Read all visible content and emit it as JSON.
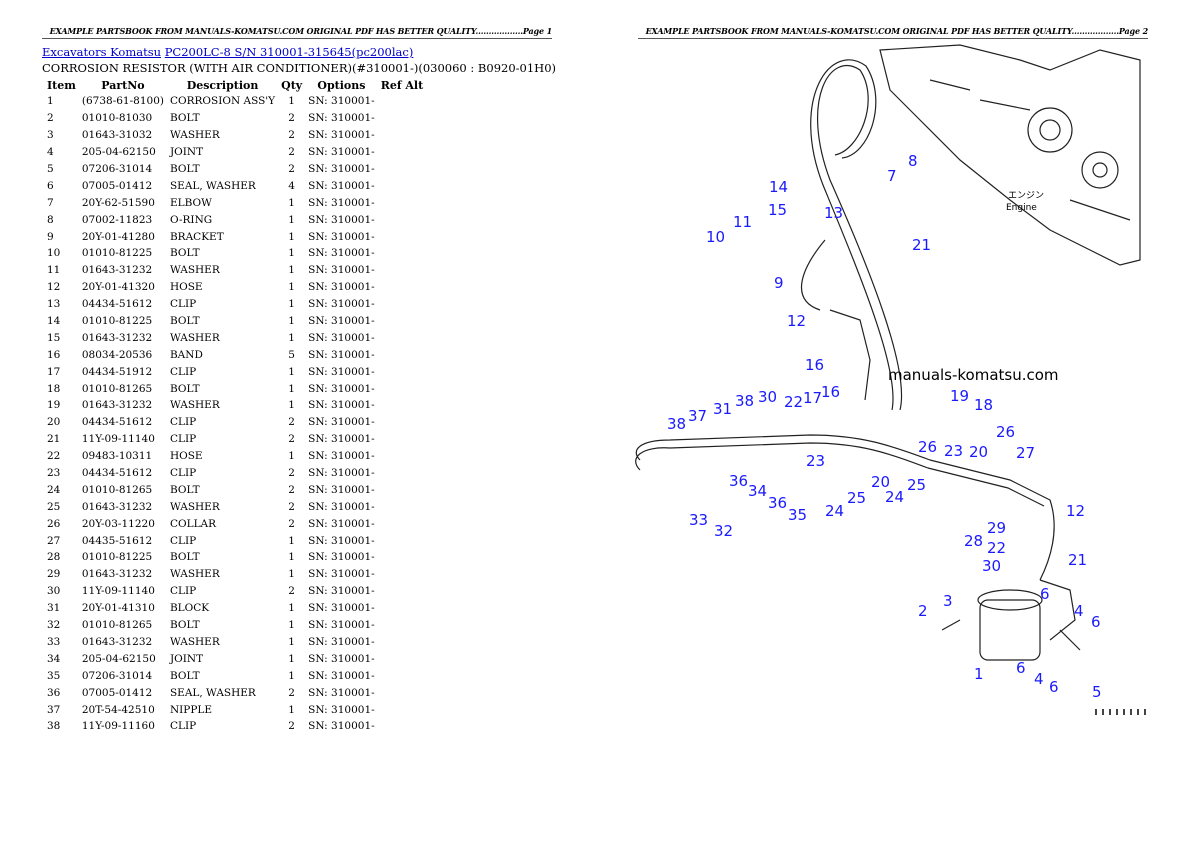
{
  "header_left": "EXAMPLE PARTSBOOK FROM MANUALS-KOMATSU.COM ORIGINAL PDF HAS BETTER QUALITY..................Page 1",
  "header_right": "EXAMPLE PARTSBOOK FROM MANUALS-KOMATSU.COM ORIGINAL PDF HAS BETTER QUALITY..................Page 2",
  "breadcrumb": {
    "link1": "Excavators Komatsu",
    "link2": "PC200LC-8 S/N 310001-315645(pc200lac)"
  },
  "subtitle": "CORROSION RESISTOR (WITH AIR CONDITIONER)(#310001-)(030060 : B0920-01H0)",
  "columns": [
    "Item",
    "PartNo",
    "Description",
    "Qty",
    "Options",
    "Ref Alt"
  ],
  "rows": [
    [
      "1",
      "(6738-61-8100)",
      "CORROSION ASS'Y",
      "1",
      "SN: 310001-"
    ],
    [
      "2",
      "01010-81030",
      "BOLT",
      "2",
      "SN: 310001-"
    ],
    [
      "3",
      "01643-31032",
      "WASHER",
      "2",
      "SN: 310001-"
    ],
    [
      "4",
      "205-04-62150",
      "JOINT",
      "2",
      "SN: 310001-"
    ],
    [
      "5",
      "07206-31014",
      "BOLT",
      "2",
      "SN: 310001-"
    ],
    [
      "6",
      "07005-01412",
      "SEAL, WASHER",
      "4",
      "SN: 310001-"
    ],
    [
      "7",
      "20Y-62-51590",
      "ELBOW",
      "1",
      "SN: 310001-"
    ],
    [
      "8",
      "07002-11823",
      "O-RING",
      "1",
      "SN: 310001-"
    ],
    [
      "9",
      "20Y-01-41280",
      "BRACKET",
      "1",
      "SN: 310001-"
    ],
    [
      "10",
      "01010-81225",
      "BOLT",
      "1",
      "SN: 310001-"
    ],
    [
      "11",
      "01643-31232",
      "WASHER",
      "1",
      "SN: 310001-"
    ],
    [
      "12",
      "20Y-01-41320",
      "HOSE",
      "1",
      "SN: 310001-"
    ],
    [
      "13",
      "04434-51612",
      "CLIP",
      "1",
      "SN: 310001-"
    ],
    [
      "14",
      "01010-81225",
      "BOLT",
      "1",
      "SN: 310001-"
    ],
    [
      "15",
      "01643-31232",
      "WASHER",
      "1",
      "SN: 310001-"
    ],
    [
      "16",
      "08034-20536",
      "BAND",
      "5",
      "SN: 310001-"
    ],
    [
      "17",
      "04434-51912",
      "CLIP",
      "1",
      "SN: 310001-"
    ],
    [
      "18",
      "01010-81265",
      "BOLT",
      "1",
      "SN: 310001-"
    ],
    [
      "19",
      "01643-31232",
      "WASHER",
      "1",
      "SN: 310001-"
    ],
    [
      "20",
      "04434-51612",
      "CLIP",
      "2",
      "SN: 310001-"
    ],
    [
      "21",
      "11Y-09-11140",
      "CLIP",
      "2",
      "SN: 310001-"
    ],
    [
      "22",
      "09483-10311",
      "HOSE",
      "1",
      "SN: 310001-"
    ],
    [
      "23",
      "04434-51612",
      "CLIP",
      "2",
      "SN: 310001-"
    ],
    [
      "24",
      "01010-81265",
      "BOLT",
      "2",
      "SN: 310001-"
    ],
    [
      "25",
      "01643-31232",
      "WASHER",
      "2",
      "SN: 310001-"
    ],
    [
      "26",
      "20Y-03-11220",
      "COLLAR",
      "2",
      "SN: 310001-"
    ],
    [
      "27",
      "04435-51612",
      "CLIP",
      "1",
      "SN: 310001-"
    ],
    [
      "28",
      "01010-81225",
      "BOLT",
      "1",
      "SN: 310001-"
    ],
    [
      "29",
      "01643-31232",
      "WASHER",
      "1",
      "SN: 310001-"
    ],
    [
      "30",
      "11Y-09-11140",
      "CLIP",
      "2",
      "SN: 310001-"
    ],
    [
      "31",
      "20Y-01-41310",
      "BLOCK",
      "1",
      "SN: 310001-"
    ],
    [
      "32",
      "01010-81265",
      "BOLT",
      "1",
      "SN: 310001-"
    ],
    [
      "33",
      "01643-31232",
      "WASHER",
      "1",
      "SN: 310001-"
    ],
    [
      "34",
      "205-04-62150",
      "JOINT",
      "1",
      "SN: 310001-"
    ],
    [
      "35",
      "07206-31014",
      "BOLT",
      "1",
      "SN: 310001-"
    ],
    [
      "36",
      "07005-01412",
      "SEAL, WASHER",
      "2",
      "SN: 310001-"
    ],
    [
      "37",
      "20T-54-42510",
      "NIPPLE",
      "1",
      "SN: 310001-"
    ],
    [
      "38",
      "11Y-09-11160",
      "CLIP",
      "2",
      "SN: 310001-"
    ]
  ],
  "diagram": {
    "watermark": "manuals-komatsu.com",
    "engine_label_jp": "エンジン",
    "engine_label_en": "Engine",
    "callout_color": "#1a1aff",
    "callouts": [
      "14",
      "8",
      "7",
      "15",
      "13",
      "11",
      "21",
      "10",
      "9",
      "12",
      "16",
      "19",
      "18",
      "38",
      "37",
      "31",
      "38",
      "30",
      "22",
      "17",
      "16",
      "26",
      "26",
      "23",
      "20",
      "27",
      "36",
      "23",
      "34",
      "25",
      "20",
      "25",
      "24",
      "36",
      "35",
      "24",
      "29",
      "12",
      "33",
      "32",
      "28",
      "22",
      "21",
      "30",
      "3",
      "6",
      "4",
      "2",
      "6",
      "1",
      "4",
      "6",
      "6",
      "5"
    ]
  }
}
